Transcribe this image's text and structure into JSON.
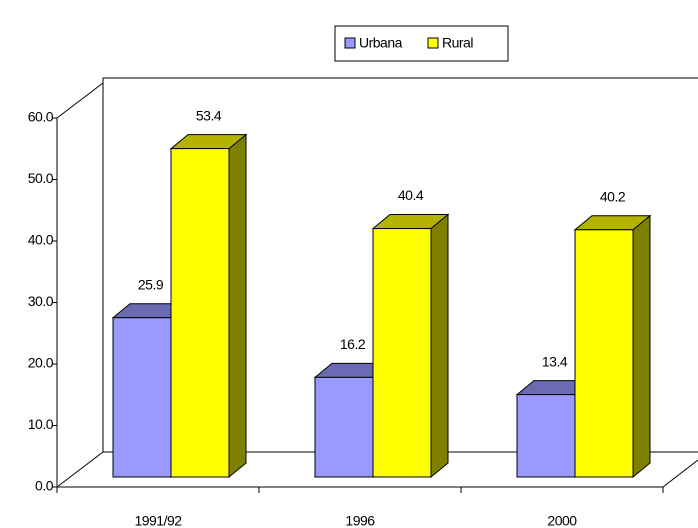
{
  "chart_data": {
    "type": "bar3d",
    "categories": [
      "1991/92",
      "1996",
      "2000"
    ],
    "series": [
      {
        "name": "Urbana",
        "color": "#9999ff",
        "values": [
          25.9,
          16.2,
          13.4
        ]
      },
      {
        "name": "Rural",
        "color": "#ffff00",
        "values": [
          53.4,
          40.4,
          40.2
        ]
      }
    ],
    "ylim": [
      0,
      60
    ],
    "yticks": [
      {
        "value": 0,
        "label": "0.0"
      },
      {
        "value": 10,
        "label": "10.0"
      },
      {
        "value": 20,
        "label": "20.0"
      },
      {
        "value": 30,
        "label": "30.0"
      },
      {
        "value": 40,
        "label": "40.0"
      },
      {
        "value": 50,
        "label": "50.0"
      },
      {
        "value": 60,
        "label": "60.0"
      }
    ],
    "legend": "top"
  }
}
